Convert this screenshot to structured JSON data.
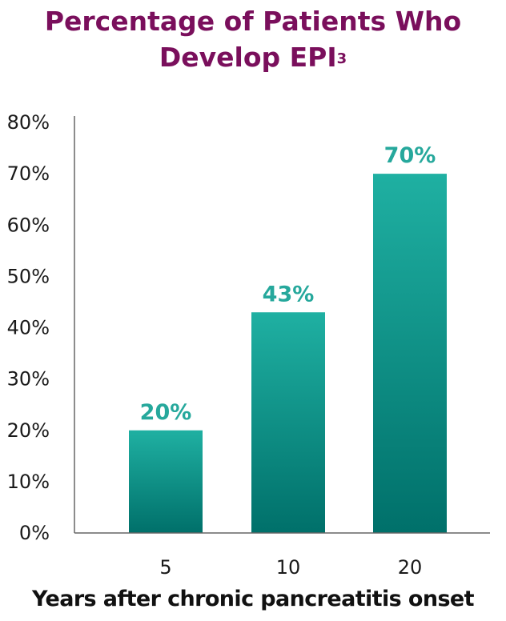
{
  "chart_data": {
    "type": "bar",
    "title": "Percentage of Patients Who",
    "title_line2": "Develop EPI",
    "title_superscript": "3",
    "categories": [
      "5",
      "10",
      "20"
    ],
    "values": [
      20,
      43,
      70
    ],
    "data_labels": [
      "20%",
      "43%",
      "70%"
    ],
    "xlabel": "Years after chronic pancreatitis onset",
    "ylabel": "",
    "ylim": [
      0,
      80
    ],
    "yticks": [
      "0%",
      "10%",
      "20%",
      "30%",
      "40%",
      "50%",
      "60%",
      "70%",
      "80%"
    ],
    "grid": false,
    "legend": "none",
    "colors": {
      "title": "#7a0f5c",
      "bar_top": "#1fb0a2",
      "bar_bottom": "#00706a",
      "data_label": "#26a89c",
      "axis": "#666666"
    }
  }
}
